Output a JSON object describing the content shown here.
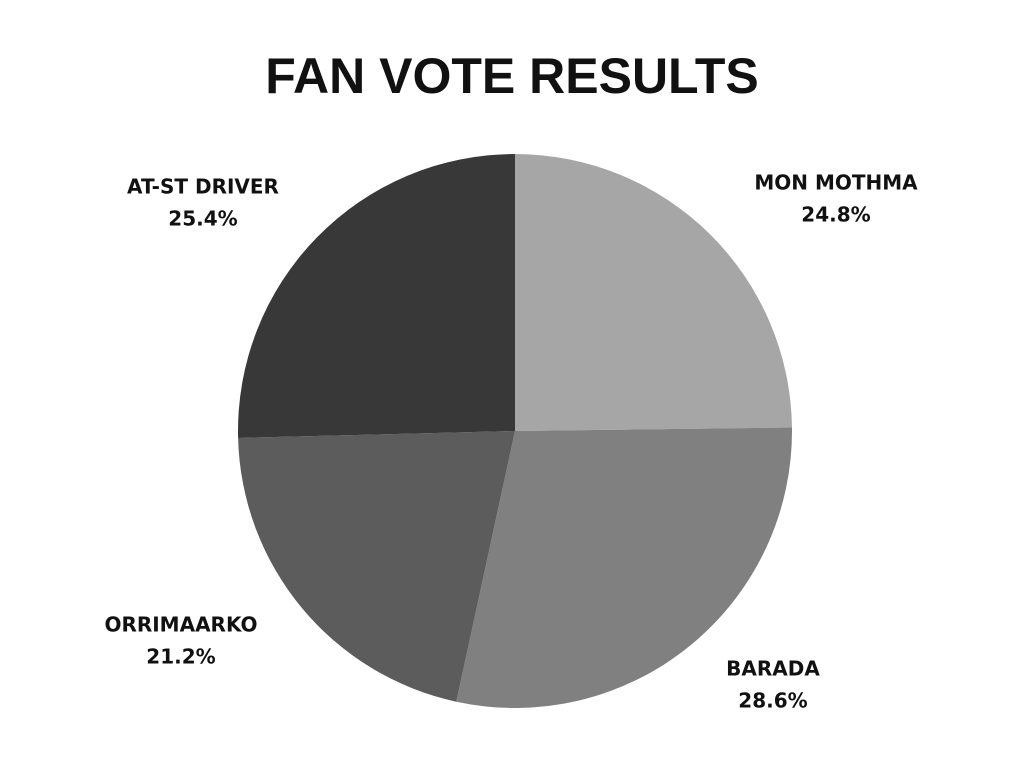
{
  "chart_data": {
    "type": "pie",
    "title": "FAN VOTE RESULTS",
    "categories": [
      "MON MOTHMA",
      "BARADA",
      "ORRIMAARKO",
      "AT-ST DRIVER"
    ],
    "values": [
      24.8,
      28.6,
      21.2,
      25.4
    ],
    "value_labels": [
      "24.8%",
      "28.6%",
      "21.2%",
      "25.4%"
    ],
    "colors": [
      "#a6a6a6",
      "#808080",
      "#5c5c5c",
      "#383838"
    ]
  }
}
